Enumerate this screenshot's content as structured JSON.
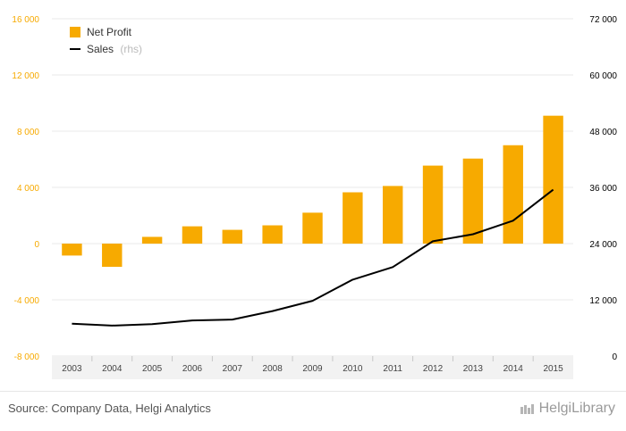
{
  "chart_data": {
    "type": "bar+line",
    "categories": [
      "2003",
      "2004",
      "2005",
      "2006",
      "2007",
      "2008",
      "2009",
      "2010",
      "2011",
      "2012",
      "2013",
      "2014",
      "2015"
    ],
    "series": [
      {
        "name": "Net Profit",
        "type": "bar",
        "axis": "left",
        "color": "#f7aa00",
        "values": [
          -850,
          -1650,
          480,
          1230,
          980,
          1300,
          2200,
          3650,
          4100,
          5550,
          6050,
          7000,
          9100
        ]
      },
      {
        "name": "Sales",
        "name_suffix": "(rhs)",
        "type": "line",
        "axis": "right",
        "color": "#000000",
        "values": [
          6900,
          6500,
          6800,
          7600,
          7800,
          9600,
          11800,
          16300,
          19000,
          24500,
          26000,
          28900,
          35500
        ]
      }
    ],
    "y_left": {
      "min": -8000,
      "max": 16000,
      "ticks": [
        "-8 000",
        "-4 000",
        "0",
        "4 000",
        "8 000",
        "12 000",
        "16 000"
      ],
      "color": "#f7aa00"
    },
    "y_right": {
      "min": 0,
      "max": 72000,
      "ticks": [
        "0",
        "12 000",
        "24 000",
        "36 000",
        "48 000",
        "60 000",
        "72 000"
      ],
      "color": "#000000"
    },
    "grid": true,
    "legend_position": "top-left"
  },
  "footer": {
    "source": "Source: Company Data, Helgi Analytics",
    "brand": "HelgiLibrary"
  }
}
